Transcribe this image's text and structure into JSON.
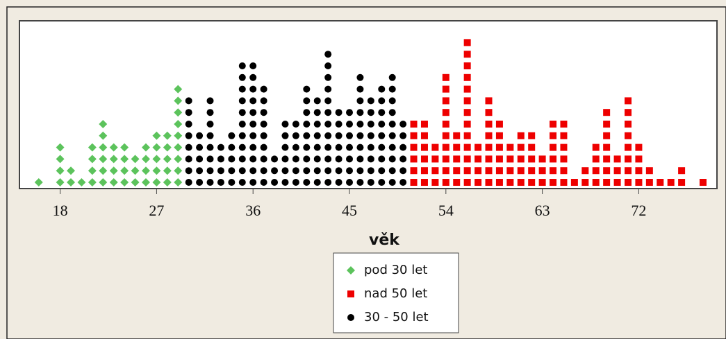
{
  "chart_data": {
    "type": "dot",
    "xlabel": "věk",
    "xlim": [
      14.2,
      79.3
    ],
    "xticks": [
      18,
      27,
      36,
      45,
      54,
      63,
      72
    ],
    "series": [
      {
        "name": "pod 30 let",
        "color": "#5cc35c",
        "marker": "diamond",
        "x": [
          16,
          18,
          19,
          20,
          21,
          22,
          23,
          24,
          25,
          26,
          27,
          28,
          29
        ],
        "values": [
          1,
          4,
          2,
          1,
          4,
          6,
          4,
          4,
          3,
          4,
          5,
          5,
          9
        ]
      },
      {
        "name": "nad 50 let",
        "color": "#ee0000",
        "marker": "square",
        "x": [
          51,
          52,
          53,
          54,
          55,
          56,
          57,
          58,
          59,
          60,
          61,
          62,
          63,
          64,
          65,
          66,
          67,
          68,
          69,
          70,
          71,
          72,
          73,
          74,
          75,
          76,
          78
        ],
        "values": [
          6,
          6,
          4,
          10,
          5,
          13,
          4,
          8,
          6,
          4,
          5,
          5,
          3,
          6,
          6,
          1,
          2,
          4,
          7,
          3,
          8,
          4,
          2,
          1,
          1,
          2,
          1
        ]
      },
      {
        "name": "30 - 50 let",
        "color": "#000000",
        "marker": "circle",
        "x": [
          30,
          31,
          32,
          33,
          34,
          35,
          36,
          37,
          38,
          39,
          40,
          41,
          42,
          43,
          44,
          45,
          46,
          47,
          48,
          49,
          50
        ],
        "values": [
          8,
          5,
          8,
          4,
          5,
          11,
          11,
          9,
          3,
          6,
          6,
          9,
          8,
          12,
          7,
          7,
          10,
          8,
          9,
          10,
          6
        ]
      }
    ]
  }
}
